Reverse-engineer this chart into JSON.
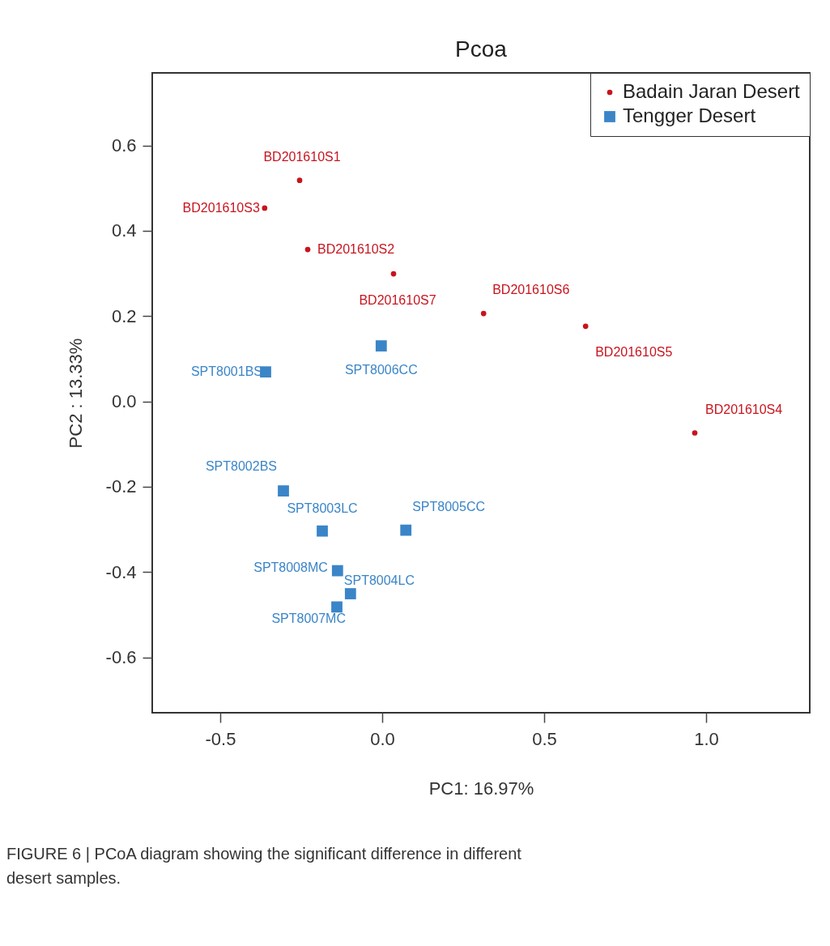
{
  "chart_data": {
    "type": "scatter",
    "title": "Pcoa",
    "xlabel": "PC1: 16.97%",
    "ylabel": "PC2 : 13.33%",
    "xlim": [
      -0.71,
      1.32
    ],
    "ylim": [
      -0.73,
      0.77
    ],
    "xticks": [
      -0.5,
      {
        "value": 0,
        "label": "0.0"
      },
      0.5,
      {
        "value": 1,
        "label": "1.0"
      }
    ],
    "yticks": [
      -0.6,
      -0.4,
      -0.2,
      {
        "value": 0,
        "label": "0.0"
      },
      0.2,
      0.4,
      0.6
    ],
    "grid": false,
    "legend": "top right",
    "series": [
      {
        "name": "Badain Jaran Desert",
        "color": "#c8141e",
        "marker": "circle",
        "x": [
          -0.255,
          -0.363,
          -0.23,
          0.035,
          0.313,
          0.628,
          0.965
        ],
        "values": [
          0.518,
          0.453,
          0.356,
          0.299,
          0.206,
          0.176,
          -0.074
        ]
      },
      {
        "name": "Tengger Desert",
        "color": "#3a85c8",
        "marker": "square",
        "x": [
          -0.36,
          -0.003,
          -0.305,
          -0.185,
          0.073,
          -0.138,
          -0.098,
          -0.14
        ],
        "values": [
          0.069,
          0.13,
          -0.21,
          -0.304,
          -0.302,
          -0.397,
          -0.451,
          -0.482
        ]
      }
    ],
    "annotations": [
      {
        "text": "BD201610S1",
        "x": -0.255,
        "y": 0.518
      },
      {
        "text": "BD201610S3",
        "x": -0.363,
        "y": 0.453
      },
      {
        "text": "BD201610S2",
        "x": -0.23,
        "y": 0.356
      },
      {
        "text": "BD201610S7",
        "x": 0.035,
        "y": 0.299
      },
      {
        "text": "BD201610S6",
        "x": 0.313,
        "y": 0.206
      },
      {
        "text": "BD201610S5",
        "x": 0.628,
        "y": 0.176
      },
      {
        "text": "BD201610S4",
        "x": 0.965,
        "y": -0.074
      },
      {
        "text": "SPT8001BS",
        "x": -0.36,
        "y": 0.069
      },
      {
        "text": "SPT8006CC",
        "x": -0.003,
        "y": 0.13
      },
      {
        "text": "SPT8002BS",
        "x": -0.305,
        "y": -0.21
      },
      {
        "text": "SPT8003LC",
        "x": -0.185,
        "y": -0.304
      },
      {
        "text": "SPT8005CC",
        "x": 0.073,
        "y": -0.302
      },
      {
        "text": "SPT8008MC",
        "x": -0.138,
        "y": -0.397
      },
      {
        "text": "SPT8004LC",
        "x": -0.098,
        "y": -0.451
      },
      {
        "text": "SPT8007MC",
        "x": -0.14,
        "y": -0.482
      },
      "FIGURE 6 | PCoA diagram showing the significant difference in different desert samples."
    ]
  }
}
